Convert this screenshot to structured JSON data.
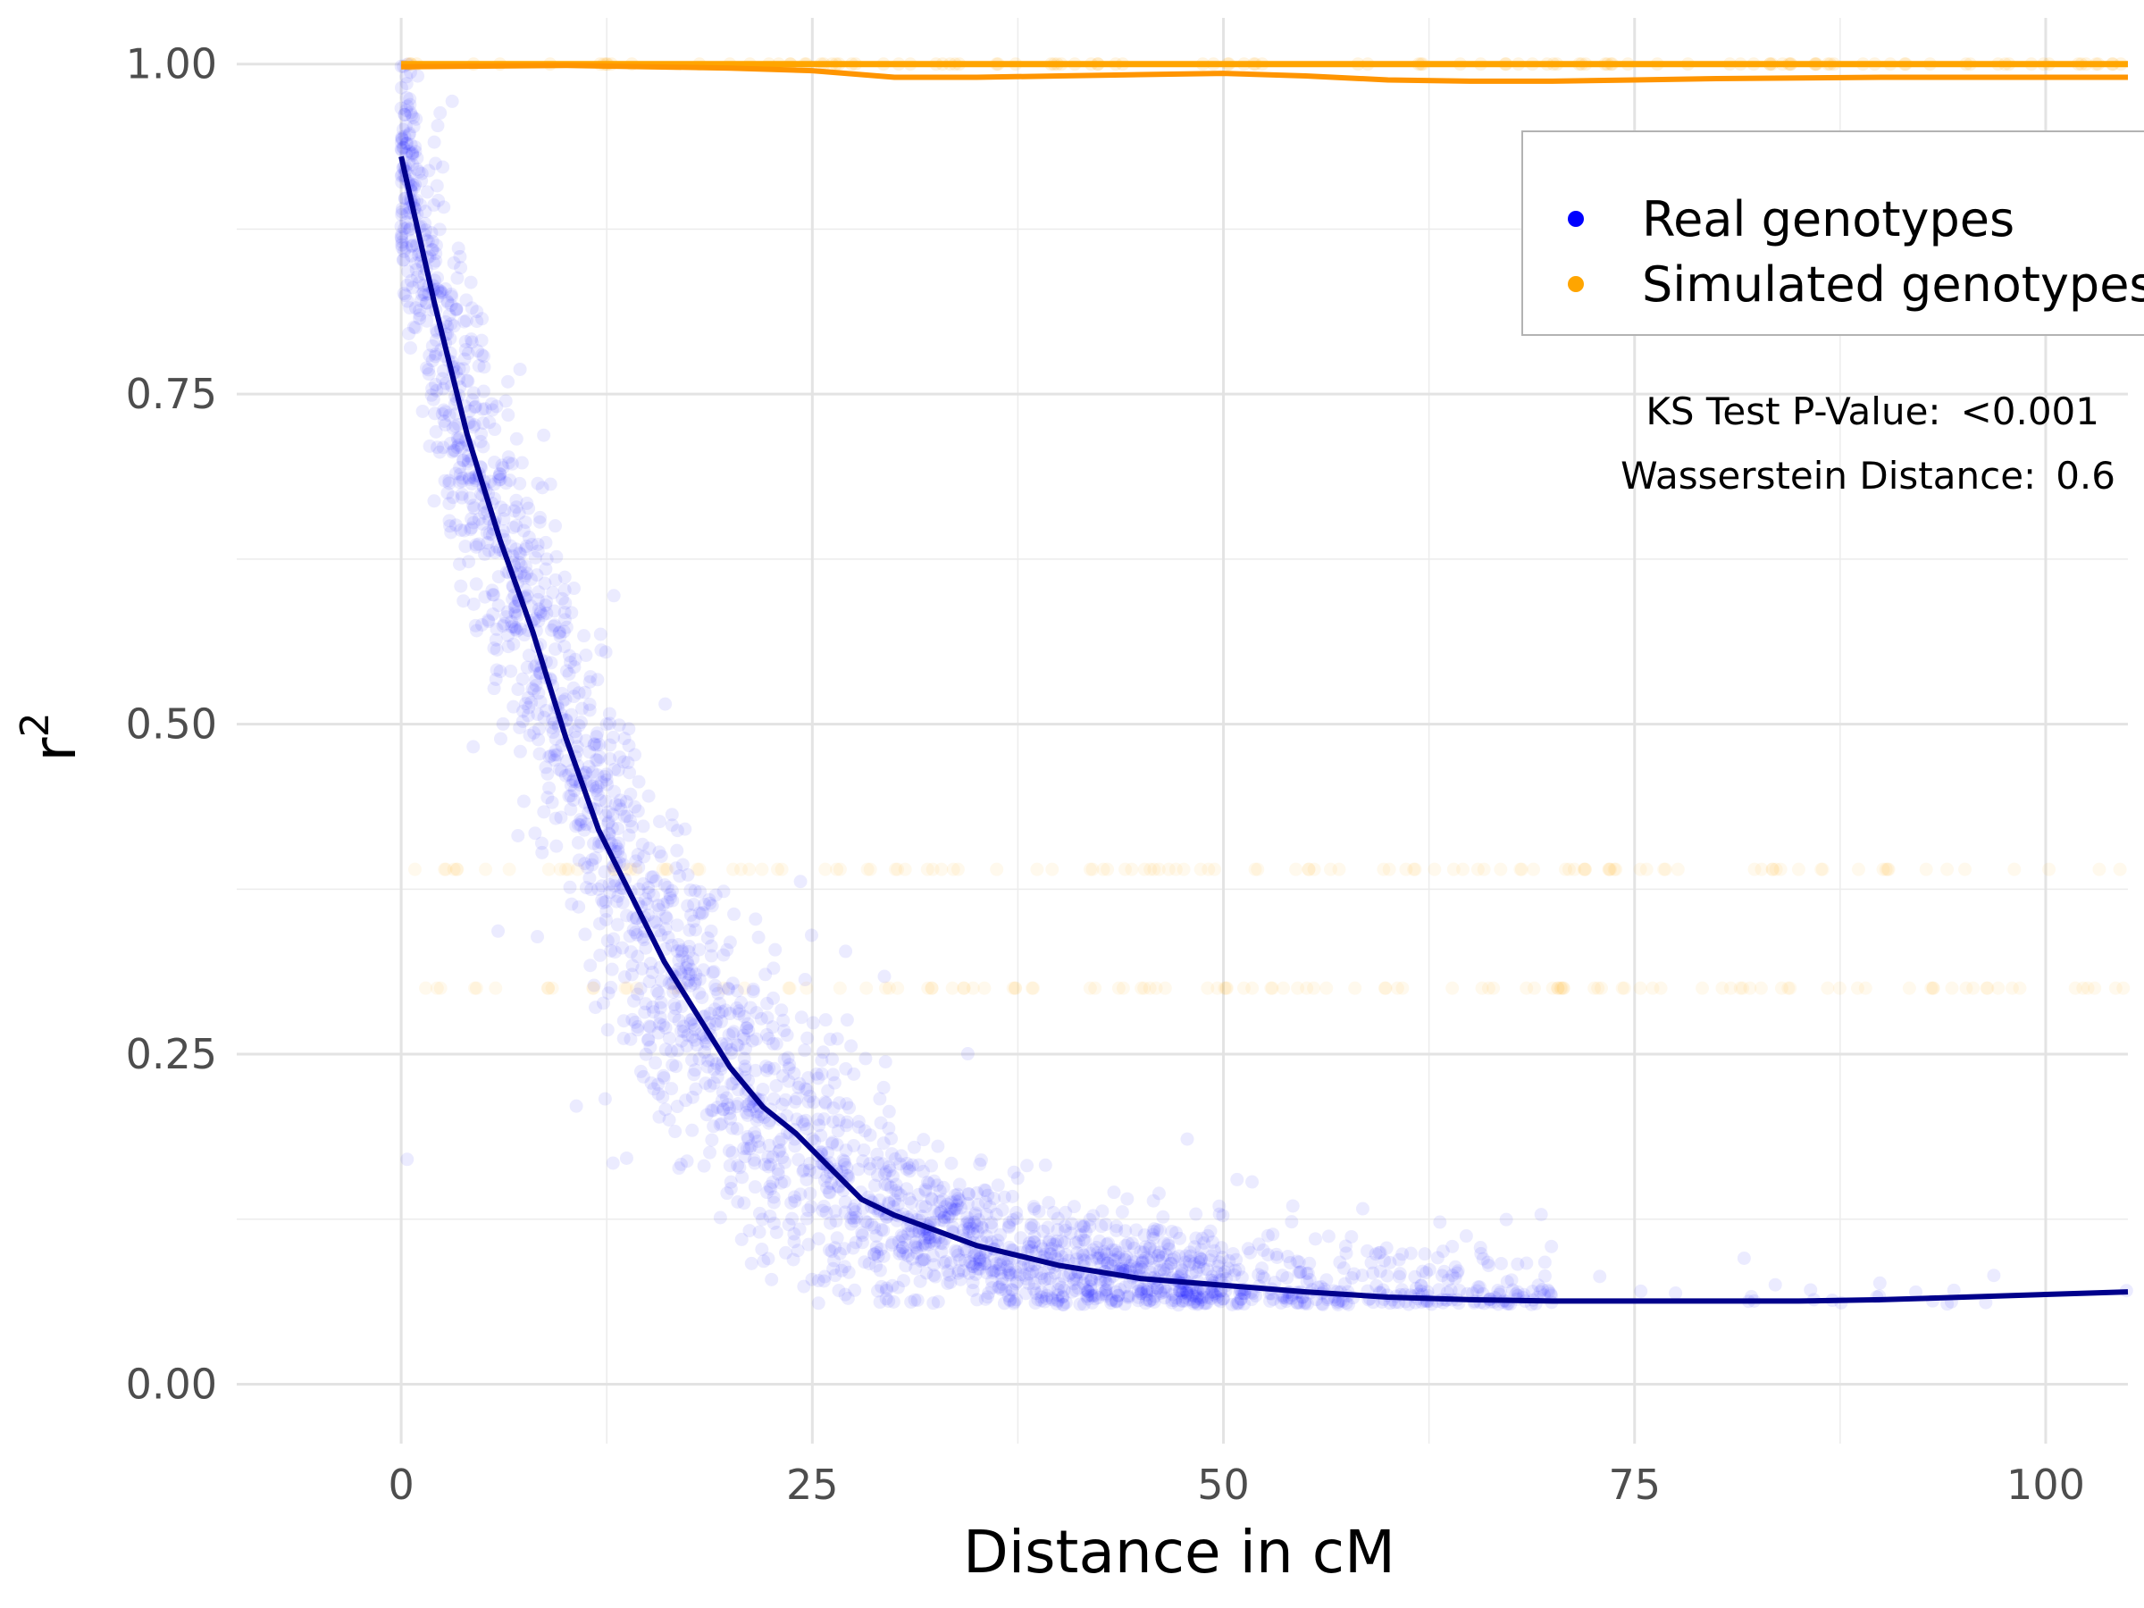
{
  "chart_data": {
    "type": "scatter",
    "xlabel": "Distance in cM",
    "ylabel": "r",
    "ylabel_superscript": "2",
    "xlim": [
      -10,
      105
    ],
    "ylim": [
      -0.045,
      1.035
    ],
    "x_ticks": [
      0,
      25,
      50,
      75,
      100
    ],
    "x_tick_labels": [
      "0",
      "25",
      "50",
      "75",
      "100"
    ],
    "y_ticks": [
      0,
      0.25,
      0.5,
      0.75,
      1.0
    ],
    "y_tick_labels": [
      "0.00",
      "0.25",
      "0.50",
      "0.75",
      "1.00"
    ],
    "grid": true,
    "legend_position": "top-right",
    "series": [
      {
        "name": "Real genotypes",
        "color": "#0000ff",
        "smooth_color": "#00008b",
        "trend": {
          "x": [
            0,
            2,
            4,
            6,
            8,
            10,
            12,
            14,
            16,
            18,
            20,
            22,
            24,
            26,
            28,
            30,
            35,
            40,
            45,
            50,
            55,
            60,
            65,
            70,
            75,
            80,
            85,
            90,
            95,
            100,
            105
          ],
          "y": [
            0.93,
            0.82,
            0.72,
            0.64,
            0.57,
            0.49,
            0.42,
            0.37,
            0.32,
            0.28,
            0.24,
            0.21,
            0.19,
            0.165,
            0.14,
            0.128,
            0.105,
            0.09,
            0.08,
            0.075,
            0.07,
            0.066,
            0.064,
            0.063,
            0.063,
            0.063,
            0.063,
            0.064,
            0.066,
            0.068,
            0.07
          ]
        }
      },
      {
        "name": "Simulated genotypes",
        "color": "#ffa500",
        "trend_upper": {
          "x": [
            0,
            10,
            20,
            30,
            40,
            50,
            60,
            70,
            80,
            90,
            100,
            105
          ],
          "y": [
            1.0,
            1.0,
            1.0,
            1.0,
            1.0,
            1.0,
            1.0,
            1.0,
            1.0,
            1.0,
            1.0,
            1.0
          ]
        },
        "trend_lower": {
          "x": [
            0,
            10,
            20,
            25,
            30,
            35,
            40,
            45,
            50,
            55,
            60,
            65,
            70,
            75,
            80,
            90,
            100,
            105
          ],
          "y": [
            0.998,
            0.999,
            0.997,
            0.995,
            0.99,
            0.99,
            0.991,
            0.992,
            0.993,
            0.991,
            0.988,
            0.987,
            0.987,
            0.988,
            0.989,
            0.99,
            0.99,
            0.99
          ]
        },
        "point_levels": [
          1.0,
          0.39,
          0.3
        ]
      }
    ],
    "annotations": [
      {
        "label": "KS Test P-Value:",
        "value": "<0.001"
      },
      {
        "label": "Wasserstein Distance:",
        "value": "0.6"
      }
    ]
  }
}
